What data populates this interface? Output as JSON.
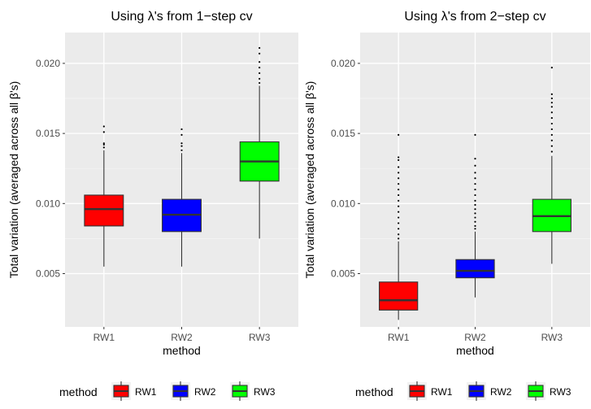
{
  "chart_data": [
    {
      "type": "boxplot",
      "title": "Using λ's from 1−step cv",
      "xlabel": "method",
      "ylabel": "Total variation (averaged across all β's)",
      "ylim": [
        0.0012,
        0.0222
      ],
      "yticks": [
        "0.005",
        "0.010",
        "0.015",
        "0.020"
      ],
      "ytick_values": [
        0.005,
        0.01,
        0.015,
        0.02
      ],
      "categories": [
        "RW1",
        "RW2",
        "RW3"
      ],
      "colors": [
        "#ff0000",
        "#0000ff",
        "#00ff00"
      ],
      "boxes": [
        {
          "name": "RW1",
          "whisker_low": 0.0055,
          "q1": 0.0084,
          "median": 0.0096,
          "q3": 0.0106,
          "whisker_high": 0.0138,
          "outliers": [
            0.014,
            0.0142,
            0.0143,
            0.0151,
            0.0155
          ]
        },
        {
          "name": "RW2",
          "whisker_low": 0.0055,
          "q1": 0.008,
          "median": 0.0092,
          "q3": 0.0103,
          "whisker_high": 0.0136,
          "outliers": [
            0.0138,
            0.0141,
            0.0143,
            0.0149,
            0.0153
          ]
        },
        {
          "name": "RW3",
          "whisker_low": 0.0075,
          "q1": 0.0116,
          "median": 0.013,
          "q3": 0.0144,
          "whisker_high": 0.0184,
          "outliers": [
            0.0186,
            0.0189,
            0.0193,
            0.0197,
            0.0201,
            0.0207,
            0.0211
          ]
        }
      ],
      "legend": {
        "title": "method",
        "entries": [
          "RW1",
          "RW2",
          "RW3"
        ],
        "position": "bottom"
      },
      "grid": true
    },
    {
      "type": "boxplot",
      "title": "Using λ's from 2−step cv",
      "xlabel": "method",
      "ylabel": "Total variation (averaged across all β's)",
      "ylim": [
        0.0012,
        0.0222
      ],
      "yticks": [
        "0.005",
        "0.010",
        "0.015",
        "0.020"
      ],
      "ytick_values": [
        0.005,
        0.01,
        0.015,
        0.02
      ],
      "categories": [
        "RW1",
        "RW2",
        "RW3"
      ],
      "colors": [
        "#ff0000",
        "#0000ff",
        "#00ff00"
      ],
      "boxes": [
        {
          "name": "RW1",
          "whisker_low": 0.0017,
          "q1": 0.0024,
          "median": 0.0031,
          "q3": 0.0044,
          "whisker_high": 0.0073,
          "outliers": [
            0.0075,
            0.0078,
            0.0082,
            0.0086,
            0.009,
            0.0094,
            0.0098,
            0.0102,
            0.0106,
            0.011,
            0.0114,
            0.0118,
            0.0122,
            0.0126,
            0.0131,
            0.0133,
            0.0149
          ]
        },
        {
          "name": "RW2",
          "whisker_low": 0.0033,
          "q1": 0.0047,
          "median": 0.0052,
          "q3": 0.006,
          "whisker_high": 0.008,
          "outliers": [
            0.0082,
            0.0084,
            0.0087,
            0.009,
            0.0093,
            0.0096,
            0.0099,
            0.0102,
            0.0106,
            0.011,
            0.0114,
            0.0118,
            0.0122,
            0.0127,
            0.0132,
            0.0149
          ]
        },
        {
          "name": "RW3",
          "whisker_low": 0.0057,
          "q1": 0.008,
          "median": 0.0091,
          "q3": 0.0103,
          "whisker_high": 0.0134,
          "outliers": [
            0.0137,
            0.0141,
            0.0145,
            0.0149,
            0.0153,
            0.0157,
            0.0161,
            0.0165,
            0.0169,
            0.0172,
            0.0175,
            0.0178,
            0.0197
          ]
        }
      ],
      "legend": {
        "title": "method",
        "entries": [
          "RW1",
          "RW2",
          "RW3"
        ],
        "position": "bottom"
      },
      "grid": true
    }
  ]
}
